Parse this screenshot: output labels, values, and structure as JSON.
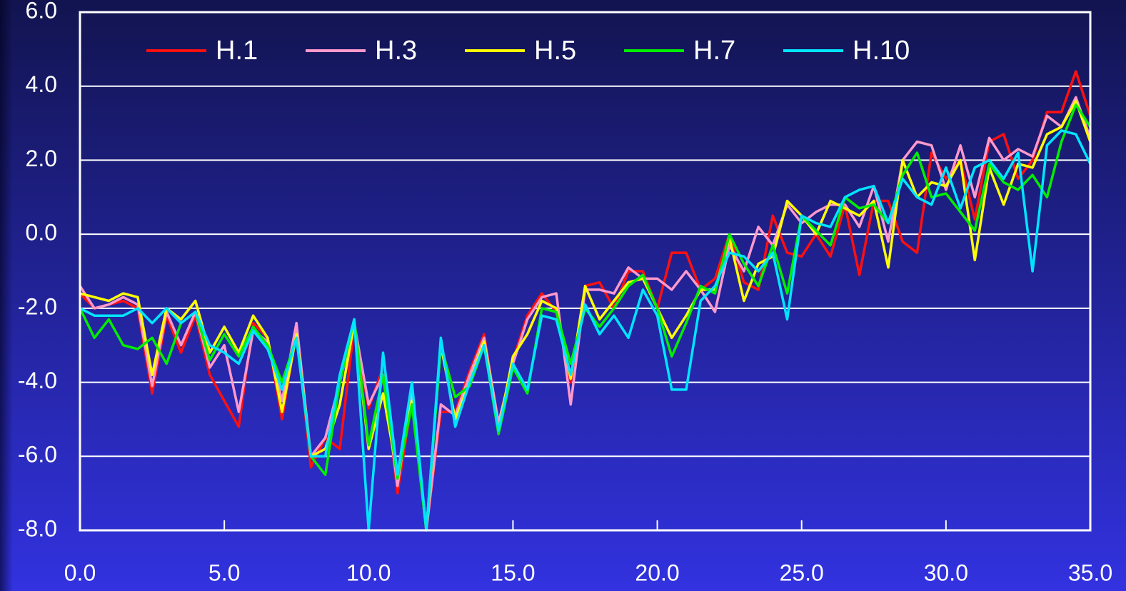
{
  "chart_data": {
    "type": "line",
    "x": [
      0,
      0.5,
      1,
      1.5,
      2,
      2.5,
      3,
      3.5,
      4,
      4.5,
      5,
      5.5,
      6,
      6.5,
      7,
      7.5,
      8,
      8.5,
      9,
      9.5,
      10,
      10.5,
      11,
      11.5,
      12,
      12.5,
      13,
      13.5,
      14,
      14.5,
      15,
      15.5,
      16,
      16.5,
      17,
      17.5,
      18,
      18.5,
      19,
      19.5,
      20,
      20.5,
      21,
      21.5,
      22,
      22.5,
      23,
      23.5,
      24,
      24.5,
      25,
      25.5,
      26,
      26.5,
      27,
      27.5,
      28,
      28.5,
      29,
      29.5,
      30,
      30.5,
      31,
      31.5,
      32,
      32.5,
      33,
      33.5,
      34,
      34.5,
      35
    ],
    "series": [
      {
        "name": "H.1",
        "color": "#ff1010",
        "values": [
          -1.6,
          -2.0,
          -1.9,
          -1.8,
          -2.0,
          -4.3,
          -2.2,
          -3.2,
          -2.2,
          -3.8,
          -4.5,
          -5.2,
          -2.4,
          -2.8,
          -5.0,
          -2.6,
          -6.3,
          -5.5,
          -5.8,
          -2.5,
          -4.7,
          -3.6,
          -7.0,
          -4.5,
          -8.0,
          -4.8,
          -4.8,
          -3.7,
          -2.7,
          -5.2,
          -3.4,
          -2.2,
          -1.6,
          -2.1,
          -4.0,
          -1.4,
          -1.3,
          -2.0,
          -1.0,
          -1.0,
          -2.0,
          -0.5,
          -0.5,
          -1.5,
          -1.2,
          0.0,
          -1.3,
          -1.5,
          0.5,
          -0.5,
          -0.6,
          0.0,
          -0.6,
          0.8,
          -1.1,
          0.9,
          0.9,
          -0.2,
          -0.5,
          2.2,
          1.5,
          2.0,
          0.4,
          2.5,
          2.7,
          1.5,
          2.0,
          3.3,
          3.3,
          4.4,
          3.2
        ]
      },
      {
        "name": "H.3",
        "color": "#ff99cc",
        "values": [
          -1.4,
          -2.0,
          -1.9,
          -1.7,
          -1.9,
          -4.1,
          -2.1,
          -3.0,
          -2.1,
          -3.6,
          -3.0,
          -4.8,
          -2.6,
          -2.9,
          -4.5,
          -2.4,
          -6.0,
          -5.5,
          -4.0,
          -2.4,
          -4.6,
          -3.8,
          -6.8,
          -4.2,
          -8.0,
          -4.6,
          -4.9,
          -3.8,
          -2.8,
          -5.1,
          -3.5,
          -2.3,
          -1.7,
          -1.6,
          -4.6,
          -1.5,
          -1.5,
          -1.6,
          -0.9,
          -1.2,
          -1.2,
          -1.5,
          -1.0,
          -1.5,
          -2.1,
          -0.3,
          -1.0,
          0.2,
          -0.3,
          0.8,
          0.3,
          0.6,
          0.8,
          0.8,
          0.2,
          1.3,
          -0.2,
          2.0,
          2.5,
          2.4,
          1.2,
          2.4,
          1.0,
          2.6,
          2.0,
          2.3,
          2.1,
          3.2,
          2.9,
          3.7,
          2.6
        ]
      },
      {
        "name": "H.5",
        "color": "#ffff00",
        "values": [
          -1.6,
          -1.7,
          -1.8,
          -1.6,
          -1.7,
          -3.8,
          -2.0,
          -2.3,
          -1.8,
          -3.2,
          -2.5,
          -3.2,
          -2.2,
          -2.8,
          -4.8,
          -2.7,
          -6.0,
          -5.8,
          -4.6,
          -2.4,
          -5.8,
          -4.3,
          -6.5,
          -4.5,
          -8.0,
          -3.0,
          -5.0,
          -4.0,
          -2.9,
          -5.3,
          -3.3,
          -2.7,
          -1.8,
          -2.0,
          -3.9,
          -1.4,
          -2.3,
          -1.8,
          -1.3,
          -1.2,
          -2.0,
          -2.8,
          -2.2,
          -1.5,
          -1.5,
          -0.1,
          -1.8,
          -0.8,
          -0.6,
          0.9,
          0.5,
          0.0,
          0.9,
          0.7,
          0.5,
          0.9,
          -0.9,
          2.0,
          1.0,
          1.4,
          1.3,
          2.0,
          -0.7,
          1.8,
          0.8,
          1.9,
          1.8,
          2.7,
          2.9,
          3.6,
          2.5
        ]
      },
      {
        "name": "H.7",
        "color": "#00ee00",
        "values": [
          -2.0,
          -2.8,
          -2.3,
          -3.0,
          -3.1,
          -2.8,
          -3.5,
          -2.4,
          -2.1,
          -3.4,
          -2.7,
          -3.3,
          -2.5,
          -3.0,
          -4.0,
          -2.8,
          -6.0,
          -6.5,
          -4.0,
          -2.3,
          -5.7,
          -3.8,
          -6.6,
          -4.6,
          -8.0,
          -3.0,
          -4.4,
          -4.1,
          -3.0,
          -5.4,
          -3.6,
          -4.3,
          -2.0,
          -2.1,
          -3.5,
          -2.0,
          -2.5,
          -2.0,
          -1.4,
          -1.1,
          -2.0,
          -3.3,
          -2.4,
          -1.4,
          -1.6,
          0.0,
          -0.8,
          -1.4,
          -0.3,
          -1.6,
          0.5,
          0.1,
          -0.3,
          1.0,
          0.7,
          0.8,
          0.3,
          1.6,
          2.2,
          1.0,
          1.1,
          0.6,
          0.1,
          1.9,
          1.4,
          1.2,
          1.6,
          1.0,
          2.5,
          3.5,
          2.9
        ]
      },
      {
        "name": "H.10",
        "color": "#00e5ff",
        "values": [
          -2.0,
          -2.2,
          -2.2,
          -2.2,
          -2.0,
          -2.4,
          -2.0,
          -2.4,
          -2.1,
          -3.0,
          -3.2,
          -3.5,
          -2.6,
          -3.1,
          -4.2,
          -2.8,
          -6.0,
          -6.0,
          -3.8,
          -2.3,
          -8.0,
          -3.2,
          -6.5,
          -4.0,
          -8.0,
          -2.8,
          -5.2,
          -4.0,
          -3.0,
          -5.3,
          -3.5,
          -4.2,
          -2.2,
          -2.3,
          -3.8,
          -1.9,
          -2.7,
          -2.2,
          -2.8,
          -1.5,
          -2.2,
          -4.2,
          -4.2,
          -1.8,
          -1.4,
          -0.5,
          -0.6,
          -1.0,
          -0.5,
          -2.3,
          0.5,
          0.3,
          0.2,
          1.0,
          1.2,
          1.3,
          0.3,
          1.5,
          1.0,
          0.8,
          1.8,
          0.7,
          1.8,
          2.0,
          1.5,
          2.2,
          -1.0,
          2.4,
          2.8,
          2.7,
          1.9
        ]
      }
    ],
    "xlim": [
      0,
      35
    ],
    "ylim": [
      -8,
      6
    ],
    "xticks": [
      {
        "value": 0,
        "label": "0.0"
      },
      {
        "value": 5,
        "label": "5.0"
      },
      {
        "value": 10,
        "label": "10.0"
      },
      {
        "value": 15,
        "label": "15.0"
      },
      {
        "value": 20,
        "label": "20.0"
      },
      {
        "value": 25,
        "label": "25.0"
      },
      {
        "value": 30,
        "label": "30.0"
      },
      {
        "value": 35,
        "label": "35.0"
      }
    ],
    "yticks": [
      {
        "value": -8,
        "label": "-8.0"
      },
      {
        "value": -6,
        "label": "-6.0"
      },
      {
        "value": -4,
        "label": "-4.0"
      },
      {
        "value": -2,
        "label": "-2.0"
      },
      {
        "value": 0,
        "label": "0.0"
      },
      {
        "value": 2,
        "label": "2.0"
      },
      {
        "value": 4,
        "label": "4.0"
      },
      {
        "value": 6,
        "label": "6.0"
      }
    ],
    "grid": true,
    "legend": "top"
  }
}
